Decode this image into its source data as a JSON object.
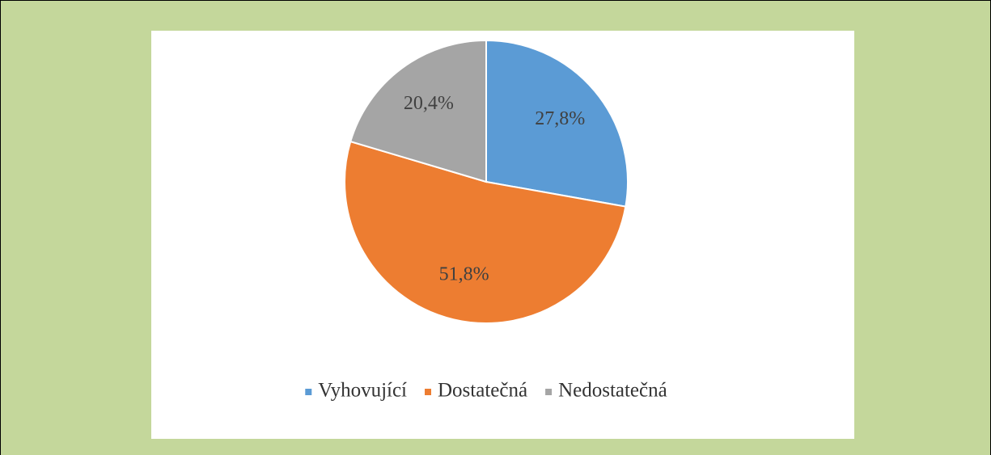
{
  "chart_data": {
    "type": "pie",
    "categories": [
      "Vyhovující",
      "Dostatečná",
      "Nedostatečná"
    ],
    "values": [
      27.8,
      51.8,
      20.4
    ],
    "value_labels": [
      "27,8%",
      "51,8%",
      "20,4%"
    ],
    "colors": [
      "#5b9bd5",
      "#ed7d31",
      "#a5a5a5"
    ],
    "legend": "bottom"
  }
}
